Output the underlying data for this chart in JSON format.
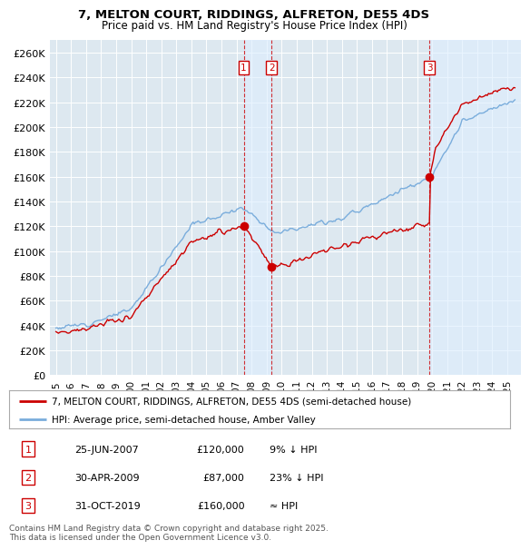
{
  "title": "7, MELTON COURT, RIDDINGS, ALFRETON, DE55 4DS",
  "subtitle": "Price paid vs. HM Land Registry's House Price Index (HPI)",
  "ylabel_ticks": [
    "£0",
    "£20K",
    "£40K",
    "£60K",
    "£80K",
    "£100K",
    "£120K",
    "£140K",
    "£160K",
    "£180K",
    "£200K",
    "£220K",
    "£240K",
    "£260K"
  ],
  "ylim": [
    0,
    270000
  ],
  "ytick_vals": [
    0,
    20000,
    40000,
    60000,
    80000,
    100000,
    120000,
    140000,
    160000,
    180000,
    200000,
    220000,
    240000,
    260000
  ],
  "red_color": "#cc0000",
  "blue_color": "#7aaddc",
  "dashed_color": "#cc0000",
  "bg_color": "#dde8f0",
  "shade_color": "#ddeeff",
  "grid_color": "#ffffff",
  "legend_label_red": "7, MELTON COURT, RIDDINGS, ALFRETON, DE55 4DS (semi-detached house)",
  "legend_label_blue": "HPI: Average price, semi-detached house, Amber Valley",
  "transactions": [
    {
      "num": 1,
      "date": "25-JUN-2007",
      "price": 120000,
      "note": "9% ↓ HPI",
      "x": 2007.48
    },
    {
      "num": 2,
      "date": "30-APR-2009",
      "price": 87000,
      "note": "23% ↓ HPI",
      "x": 2009.33
    },
    {
      "num": 3,
      "date": "31-OCT-2019",
      "price": 160000,
      "note": "≈ HPI",
      "x": 2019.83
    }
  ],
  "footer": "Contains HM Land Registry data © Crown copyright and database right 2025.\nThis data is licensed under the Open Government Licence v3.0."
}
